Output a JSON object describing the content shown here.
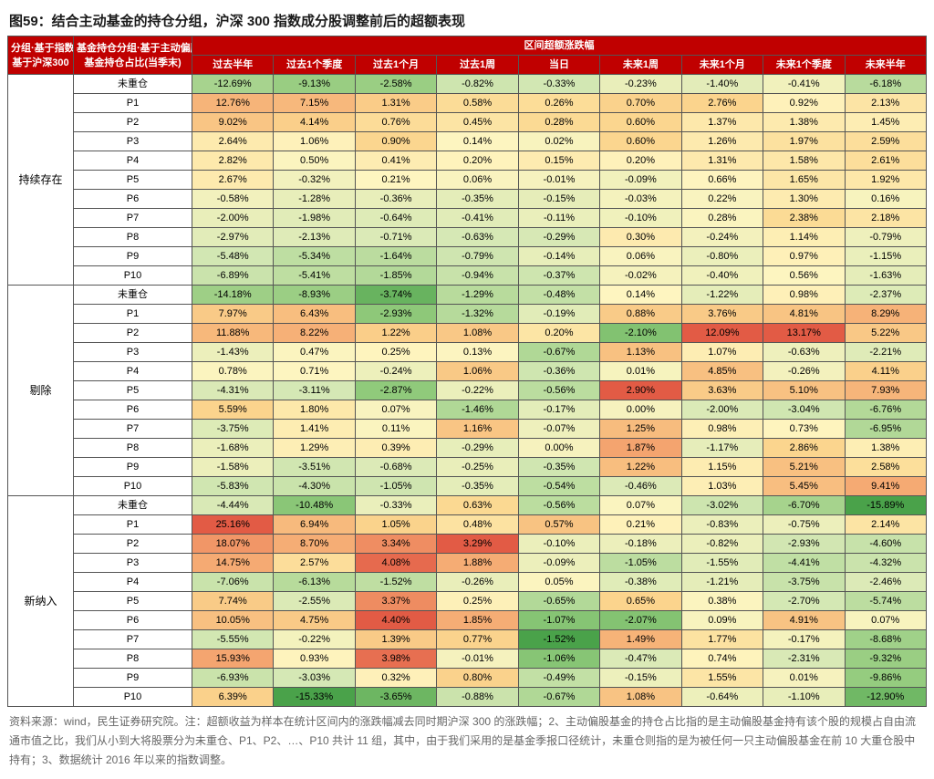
{
  "title": "图59：结合主动基金的持仓分组，沪深 300 指数成分股调整前后的超额表现",
  "header": {
    "col1_l1": "分组·基于指数调整:",
    "col1_l2": "基于沪深300",
    "col2_l1": "基金持仓分组·基于主动偏股",
    "col2_l2": "基金持仓占比(当季末)",
    "span_title": "区间超额涨跌幅",
    "periods": [
      "过去半年",
      "过去1个季度",
      "过去1个月",
      "过去1周",
      "当日",
      "未来1周",
      "未来1个月",
      "未来1个季度",
      "未来半年"
    ]
  },
  "color_scale": {
    "neg_strong": "#4aa24a",
    "neg_mid": "#8fc97a",
    "neg_weak": "#d5e8b5",
    "neutral": "#fef5c0",
    "pos_weak": "#fbd78f",
    "pos_mid": "#f4a26e",
    "pos_strong": "#e25b45",
    "header_bg": "#c00000",
    "header_fg": "#ffffff"
  },
  "groups": [
    {
      "name": "持续存在",
      "rows": [
        {
          "label": "未重仓",
          "v": [
            -12.69,
            -9.13,
            -2.58,
            -0.82,
            -0.33,
            -0.23,
            -1.4,
            -0.41,
            -6.18
          ]
        },
        {
          "label": "P1",
          "v": [
            12.76,
            7.15,
            1.31,
            0.58,
            0.26,
            0.7,
            2.76,
            0.92,
            2.13
          ]
        },
        {
          "label": "P2",
          "v": [
            9.02,
            4.14,
            0.76,
            0.45,
            0.28,
            0.6,
            1.37,
            1.38,
            1.45
          ]
        },
        {
          "label": "P3",
          "v": [
            2.64,
            1.06,
            0.9,
            0.14,
            0.02,
            0.6,
            1.26,
            1.97,
            2.59
          ]
        },
        {
          "label": "P4",
          "v": [
            2.82,
            0.5,
            0.41,
            0.2,
            0.15,
            0.2,
            1.31,
            1.58,
            2.61
          ]
        },
        {
          "label": "P5",
          "v": [
            2.67,
            -0.32,
            0.21,
            0.06,
            -0.01,
            -0.09,
            0.66,
            1.65,
            1.92
          ]
        },
        {
          "label": "P6",
          "v": [
            -0.58,
            -1.28,
            -0.36,
            -0.35,
            -0.15,
            -0.03,
            0.22,
            1.3,
            0.16
          ]
        },
        {
          "label": "P7",
          "v": [
            -2.0,
            -1.98,
            -0.64,
            -0.41,
            -0.11,
            -0.1,
            0.28,
            2.38,
            2.18
          ]
        },
        {
          "label": "P8",
          "v": [
            -2.97,
            -2.13,
            -0.71,
            -0.63,
            -0.29,
            0.3,
            -0.24,
            1.14,
            -0.79
          ]
        },
        {
          "label": "P9",
          "v": [
            -5.48,
            -5.34,
            -1.64,
            -0.79,
            -0.14,
            0.06,
            -0.8,
            0.97,
            -1.15
          ]
        },
        {
          "label": "P10",
          "v": [
            -6.89,
            -5.41,
            -1.85,
            -0.94,
            -0.37,
            -0.02,
            -0.4,
            0.56,
            -1.63
          ]
        }
      ]
    },
    {
      "name": "剔除",
      "rows": [
        {
          "label": "未重仓",
          "v": [
            -14.18,
            -8.93,
            -3.74,
            -1.29,
            -0.48,
            0.14,
            -1.22,
            0.98,
            -2.37
          ]
        },
        {
          "label": "P1",
          "v": [
            7.97,
            6.43,
            -2.93,
            -1.32,
            -0.19,
            0.88,
            3.76,
            4.81,
            8.29
          ]
        },
        {
          "label": "P2",
          "v": [
            11.88,
            8.22,
            1.22,
            1.08,
            0.2,
            -2.1,
            12.09,
            13.17,
            5.22
          ]
        },
        {
          "label": "P3",
          "v": [
            -1.43,
            0.47,
            0.25,
            0.13,
            -0.67,
            1.13,
            1.07,
            -0.63,
            -2.21
          ]
        },
        {
          "label": "P4",
          "v": [
            0.78,
            0.71,
            -0.24,
            1.06,
            -0.36,
            0.01,
            4.85,
            -0.26,
            4.11
          ]
        },
        {
          "label": "P5",
          "v": [
            -4.31,
            -3.11,
            -2.87,
            -0.22,
            -0.56,
            2.9,
            3.63,
            5.1,
            7.93
          ]
        },
        {
          "label": "P6",
          "v": [
            5.59,
            1.8,
            0.07,
            -1.46,
            -0.17,
            0.0,
            -2.0,
            -3.04,
            -6.76
          ]
        },
        {
          "label": "P7",
          "v": [
            -3.75,
            1.41,
            0.11,
            1.16,
            -0.07,
            1.25,
            0.98,
            0.73,
            -6.95
          ]
        },
        {
          "label": "P8",
          "v": [
            -1.68,
            1.29,
            0.39,
            -0.29,
            0.0,
            1.87,
            -1.17,
            2.86,
            1.38
          ]
        },
        {
          "label": "P9",
          "v": [
            -1.58,
            -3.51,
            -0.68,
            -0.25,
            -0.35,
            1.22,
            1.15,
            5.21,
            2.58
          ]
        },
        {
          "label": "P10",
          "v": [
            -5.83,
            -4.3,
            -1.05,
            -0.35,
            -0.54,
            -0.46,
            1.03,
            5.45,
            9.41
          ]
        }
      ]
    },
    {
      "name": "新纳入",
      "rows": [
        {
          "label": "未重仓",
          "v": [
            -4.44,
            -10.48,
            -0.33,
            0.63,
            -0.56,
            0.07,
            -3.02,
            -6.7,
            -15.89
          ]
        },
        {
          "label": "P1",
          "v": [
            25.16,
            6.94,
            1.05,
            0.48,
            0.57,
            0.21,
            -0.83,
            -0.75,
            2.14
          ]
        },
        {
          "label": "P2",
          "v": [
            18.07,
            8.7,
            3.34,
            3.29,
            -0.1,
            -0.18,
            -0.82,
            -2.93,
            -4.6
          ]
        },
        {
          "label": "P3",
          "v": [
            14.75,
            2.57,
            4.08,
            1.88,
            -0.09,
            -1.05,
            -1.55,
            -4.41,
            -4.32
          ]
        },
        {
          "label": "P4",
          "v": [
            -7.06,
            -6.13,
            -1.52,
            -0.26,
            0.05,
            -0.38,
            -1.21,
            -3.75,
            -2.46
          ]
        },
        {
          "label": "P5",
          "v": [
            7.74,
            -2.55,
            3.37,
            0.25,
            -0.65,
            0.65,
            0.38,
            -2.7,
            -5.74
          ]
        },
        {
          "label": "P6",
          "v": [
            10.05,
            4.75,
            4.4,
            1.85,
            -1.07,
            -2.07,
            0.09,
            4.91,
            0.07
          ]
        },
        {
          "label": "P7",
          "v": [
            -5.55,
            -0.22,
            1.39,
            0.77,
            -1.52,
            1.49,
            1.77,
            -0.17,
            -8.68
          ]
        },
        {
          "label": "P8",
          "v": [
            15.93,
            0.93,
            3.98,
            -0.01,
            -1.06,
            -0.47,
            0.74,
            -2.31,
            -9.32
          ]
        },
        {
          "label": "P9",
          "v": [
            -6.93,
            -3.03,
            0.32,
            0.8,
            -0.49,
            -0.15,
            1.55,
            0.01,
            -9.86
          ]
        },
        {
          "label": "P10",
          "v": [
            6.39,
            -15.33,
            -3.65,
            -0.88,
            -0.67,
            1.08,
            -0.64,
            -1.1,
            -12.9
          ]
        }
      ]
    }
  ],
  "footnote": "资料来源：wind，民生证券研究院。注：超额收益为样本在统计区间内的涨跌幅减去同时期沪深 300 的涨跌幅；2、主动偏股基金的持仓占比指的是主动偏股基金持有该个股的规模占自由流通市值之比，我们从小到大将股票分为未重仓、P1、P2、…、P10 共计 11 组，其中，由于我们采用的是基金季报口径统计，未重仓则指的是为被任何一只主动偏股基金在前 10 大重仓股中持有；3、数据统计 2016 年以来的指数调整。"
}
